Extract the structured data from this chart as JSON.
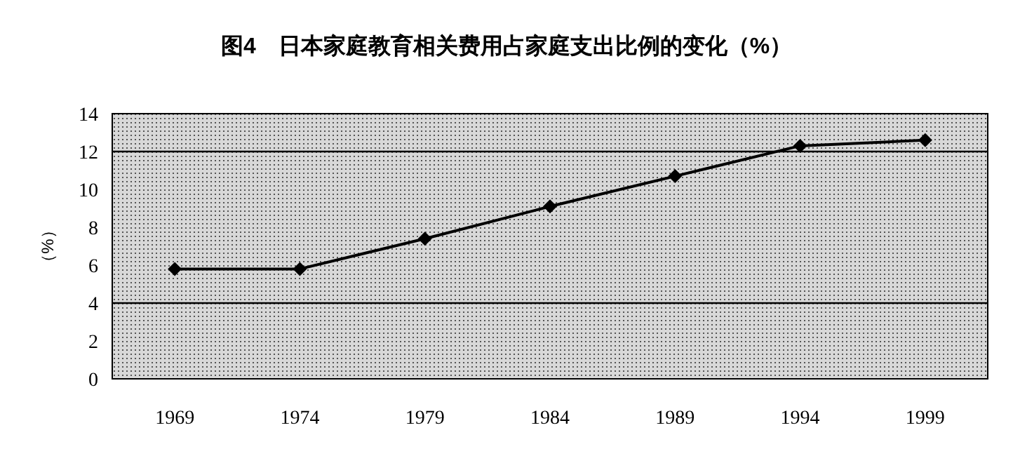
{
  "chart_data": {
    "type": "line",
    "title": "图4　日本家庭教育相关费用占家庭支出比例的变化（%）",
    "ylabel": "（%）",
    "categories": [
      "1969",
      "1974",
      "1979",
      "1984",
      "1989",
      "1994",
      "1999"
    ],
    "series": [
      {
        "color": "#000000",
        "values": [
          5.8,
          5.8,
          7.4,
          9.1,
          10.7,
          12.3,
          12.6
        ]
      }
    ],
    "ylim": [
      0,
      14
    ],
    "yticks": [
      0,
      2,
      4,
      6,
      8,
      10,
      12,
      14
    ],
    "ref_lines": [
      {
        "axis": "y",
        "value": 4,
        "color": "#000000"
      },
      {
        "axis": "y",
        "value": 12,
        "color": "#000000"
      }
    ],
    "marker": "diamond",
    "line_style": "solid"
  }
}
